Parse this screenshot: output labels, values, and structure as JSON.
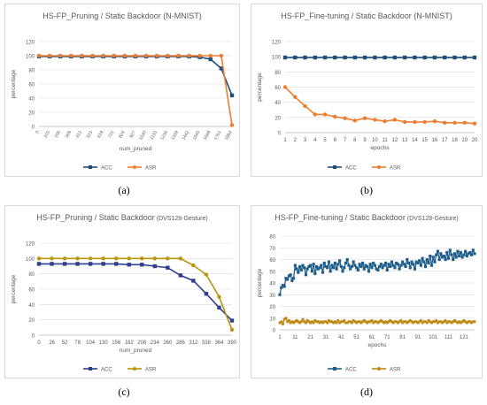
{
  "captions": [
    "(a)",
    "(b)",
    "(c)",
    "(d)"
  ],
  "chart_data": [
    {
      "type": "line",
      "title": "HS-FP_Pruning / Static Backdoor (N-MNIST)",
      "xlabel": "num_pruned",
      "ylabel": "percentage",
      "ylim": [
        0,
        120
      ],
      "yticks": [
        0,
        20,
        40,
        60,
        80,
        100,
        120
      ],
      "categories": [
        "0",
        "103",
        "206",
        "309",
        "412",
        "515",
        "618",
        "721",
        "824",
        "927",
        "1030",
        "1133",
        "1236",
        "1339",
        "1442",
        "1545",
        "1648",
        "1751",
        "1854"
      ],
      "grid": true,
      "legend": "bottom-center",
      "series": [
        {
          "name": "ACC",
          "color": "#1f4e79",
          "marker": "square",
          "values": [
            99,
            99,
            99,
            99,
            99,
            99,
            99,
            99,
            99,
            99,
            99,
            99,
            99,
            99,
            99,
            98,
            95,
            82,
            44
          ]
        },
        {
          "name": "ASR",
          "color": "#ed7d31",
          "marker": "circle",
          "values": [
            100,
            100,
            100,
            100,
            100,
            100,
            100,
            100,
            100,
            100,
            100,
            100,
            100,
            100,
            100,
            100,
            100,
            100,
            2
          ]
        }
      ]
    },
    {
      "type": "line",
      "title": "HS-FP_Fine-tuning / Static Backdoor (N-MNIST)",
      "xlabel": "epochs",
      "ylabel": "percentage",
      "ylim": [
        0,
        120
      ],
      "yticks": [
        0,
        20,
        40,
        60,
        80,
        100,
        120
      ],
      "categories": [
        "1",
        "2",
        "3",
        "4",
        "5",
        "6",
        "7",
        "8",
        "9",
        "10",
        "11",
        "12",
        "13",
        "14",
        "15",
        "16",
        "17",
        "18",
        "19",
        "20"
      ],
      "grid": true,
      "legend": "bottom-center",
      "series": [
        {
          "name": "ACC",
          "color": "#1f4e79",
          "marker": "square",
          "values": [
            99,
            99,
            99,
            99,
            99,
            99,
            99,
            99,
            99,
            99,
            99,
            99,
            99,
            99,
            99,
            99,
            99,
            99,
            99,
            99
          ]
        },
        {
          "name": "ASR",
          "color": "#ed7d31",
          "marker": "circle",
          "values": [
            60,
            47,
            35,
            24,
            24,
            21,
            19,
            16,
            19,
            17,
            15,
            17,
            14,
            14,
            14,
            15,
            13,
            13,
            13,
            12
          ]
        }
      ]
    },
    {
      "type": "line",
      "title": "HS-FP_Pruning / Static Backdoor",
      "title_suffix": "(DVS128-Gesture)",
      "xlabel": "num_pruned",
      "ylabel": "percentage",
      "ylim": [
        0,
        120
      ],
      "yticks": [
        0,
        20,
        40,
        60,
        80,
        100,
        120
      ],
      "categories": [
        "0",
        "26",
        "52",
        "78",
        "104",
        "130",
        "156",
        "182",
        "208",
        "234",
        "260",
        "286",
        "312",
        "338",
        "364",
        "390"
      ],
      "grid": true,
      "legend": "bottom-center",
      "series": [
        {
          "name": "ACC",
          "color": "#2f3f8f",
          "marker": "square",
          "values": [
            93,
            93,
            93,
            93,
            93,
            93,
            93,
            92,
            92,
            90,
            88,
            78,
            71,
            54,
            36,
            19
          ]
        },
        {
          "name": "ASR",
          "color": "#b8960c",
          "marker": "circle",
          "values": [
            100,
            100,
            100,
            100,
            100,
            100,
            100,
            100,
            100,
            100,
            100,
            100,
            91,
            79,
            50,
            7
          ]
        }
      ]
    },
    {
      "type": "line",
      "title": "HS-FP_Fine-tuning / Static Backdoor",
      "title_suffix": "(DVS128-Gesture)",
      "xlabel": "epochs",
      "ylabel": "percentage",
      "ylim": [
        0,
        80
      ],
      "yticks": [
        0,
        10,
        20,
        30,
        40,
        50,
        60,
        70,
        80
      ],
      "xticks": [
        "1",
        "11",
        "21",
        "31",
        "41",
        "51",
        "61",
        "71",
        "81",
        "91",
        "101",
        "111",
        "121"
      ],
      "grid": true,
      "legend": "bottom-center",
      "series": [
        {
          "name": "ACC",
          "color": "#1f5e8a",
          "marker": "square",
          "values": [
            30,
            36,
            38,
            37,
            44,
            43,
            46,
            47,
            42,
            44,
            55,
            52,
            49,
            54,
            51,
            55,
            53,
            47,
            52,
            54,
            55,
            50,
            56,
            48,
            54,
            52,
            53,
            55,
            49,
            57,
            54,
            53,
            58,
            50,
            55,
            53,
            57,
            52,
            56,
            59,
            54,
            50,
            53,
            57,
            60,
            55,
            52,
            54,
            58,
            55,
            53,
            51,
            56,
            54,
            57,
            52,
            55,
            54,
            50,
            56,
            53,
            57,
            55,
            52,
            51,
            54,
            56,
            53,
            55,
            57,
            51,
            56,
            54,
            58,
            55,
            53,
            57,
            56,
            52,
            55,
            58,
            56,
            54,
            60,
            57,
            53,
            58,
            56,
            52,
            58,
            57,
            59,
            55,
            61,
            58,
            54,
            60,
            57,
            63,
            55,
            62,
            58,
            64,
            67,
            60,
            65,
            62,
            63,
            60,
            66,
            61,
            68,
            64,
            60,
            65,
            62,
            67,
            63,
            66,
            62,
            64,
            67,
            63,
            65,
            66,
            64,
            68,
            65
          ]
        },
        {
          "name": "ASR",
          "color": "#c08a16",
          "marker": "circle",
          "values": [
            6,
            7,
            5,
            9,
            10,
            7,
            8,
            6,
            7,
            6,
            7,
            8,
            7,
            6,
            7,
            9,
            7,
            6,
            8,
            7,
            6,
            7,
            6,
            8,
            7,
            7,
            6,
            7,
            6,
            7,
            7,
            6,
            8,
            7,
            7,
            6,
            7,
            6,
            8,
            6,
            7,
            7,
            8,
            6,
            6,
            7,
            7,
            6,
            8,
            7,
            6,
            7,
            7,
            6,
            7,
            8,
            7,
            6,
            7,
            7,
            8,
            6,
            7,
            7,
            6,
            7,
            8,
            7,
            6,
            7,
            6,
            7,
            8,
            7,
            6,
            7,
            7,
            6,
            7,
            8,
            6,
            7,
            7,
            6,
            7,
            8,
            7,
            6,
            7,
            7,
            6,
            7,
            8,
            6,
            7,
            7,
            6,
            8,
            7,
            6,
            7,
            7,
            8,
            6,
            7,
            7,
            6,
            7,
            8,
            6,
            7,
            7,
            6,
            7,
            8,
            7,
            6,
            7,
            6,
            7,
            8,
            7,
            6,
            7,
            7,
            6,
            7,
            7
          ]
        }
      ]
    }
  ]
}
